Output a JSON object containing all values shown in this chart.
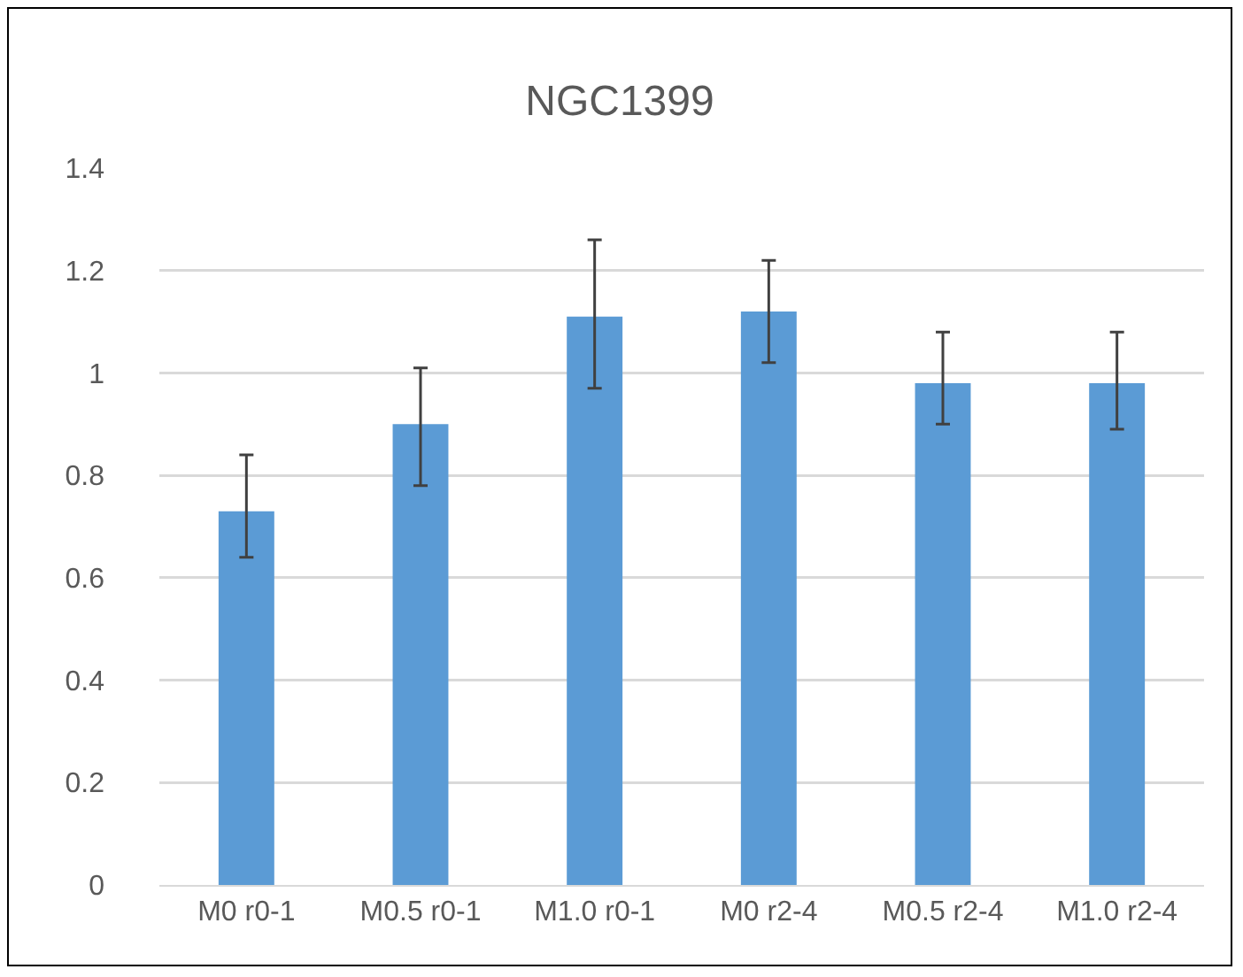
{
  "chart_data": {
    "type": "bar",
    "title": "NGC1399",
    "categories": [
      "M0 r0-1",
      "M0.5 r0-1",
      "M1.0 r0-1",
      "M0 r2-4",
      "M0.5 r2-4",
      "M1.0 r2-4"
    ],
    "values": [
      0.73,
      0.9,
      1.11,
      1.12,
      0.98,
      0.98
    ],
    "errors": [
      [
        0.64,
        0.84
      ],
      [
        0.78,
        1.01
      ],
      [
        0.97,
        1.26
      ],
      [
        1.02,
        1.22
      ],
      [
        0.9,
        1.08
      ],
      [
        0.89,
        1.08
      ]
    ],
    "color": "#5b9bd5",
    "ylim": [
      0,
      1.4
    ],
    "yticks": [
      0,
      0.2,
      0.4,
      0.6,
      0.8,
      1,
      1.2,
      1.4
    ],
    "grid": "y",
    "legend": false
  }
}
